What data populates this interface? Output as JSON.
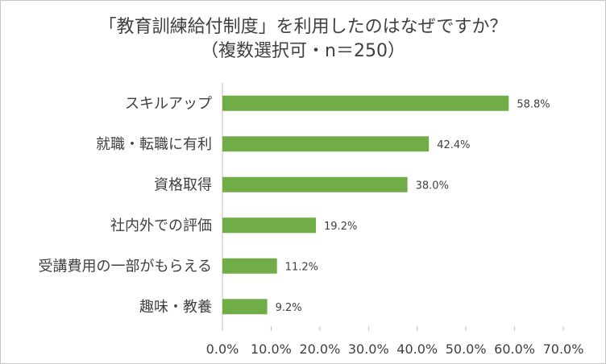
{
  "chart_data": {
    "type": "bar",
    "orientation": "horizontal",
    "title_lines": [
      "「教育訓練給付制度」を利用したのはなぜですか？",
      "（複数選択可・n＝250）"
    ],
    "categories": [
      "スキルアップ",
      "就職・転職に有利",
      "資格取得",
      "社内外での評価",
      "受講費用の一部がもらえる",
      "趣味・教養"
    ],
    "values": [
      58.8,
      42.4,
      38.0,
      19.2,
      11.2,
      9.2
    ],
    "data_labels": [
      "58.8%",
      "42.4%",
      "38.0%",
      "19.2%",
      "11.2%",
      "9.2%"
    ],
    "xlim": [
      0,
      70
    ],
    "xticks": [
      0,
      10,
      20,
      30,
      40,
      50,
      60,
      70
    ],
    "xtick_labels": [
      "0.0%",
      "10.0%",
      "20.0%",
      "30.0%",
      "40.0%",
      "50.0%",
      "60.0%",
      "70.0%"
    ],
    "grid": false,
    "bar_color": "#70ad47",
    "axis_color": "#bfbfbf"
  }
}
